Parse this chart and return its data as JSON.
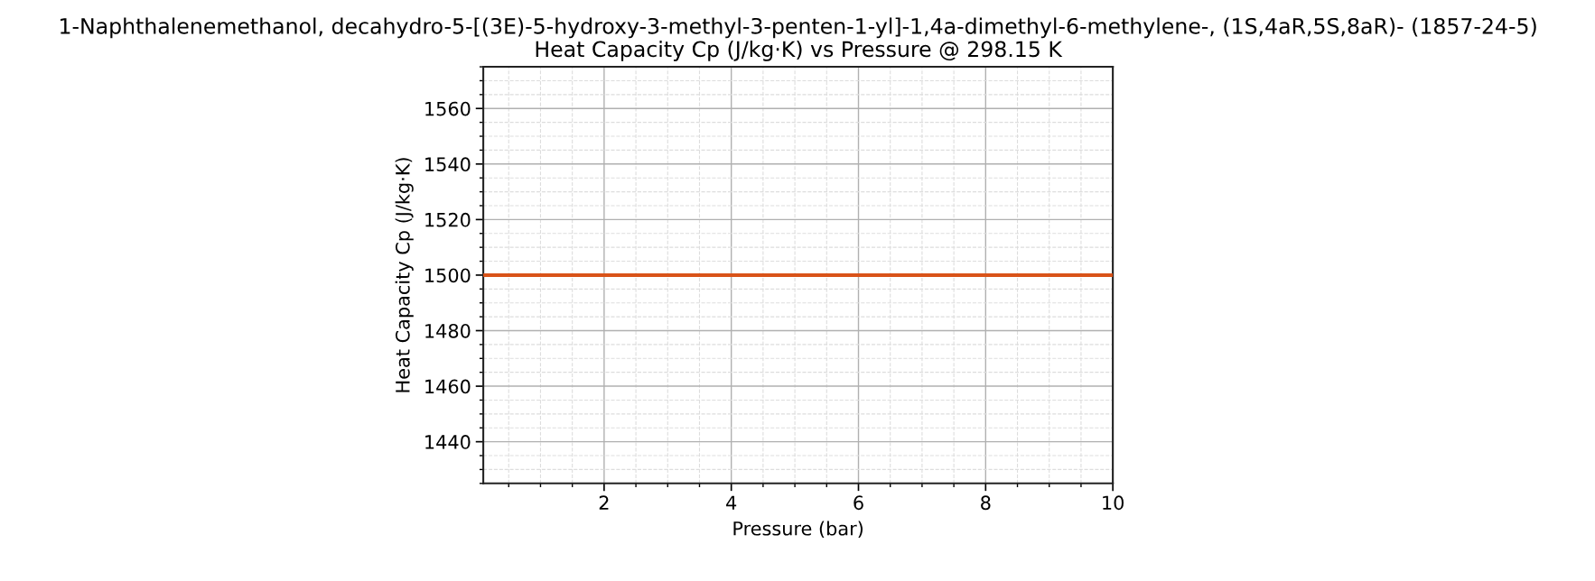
{
  "chart_data": {
    "type": "line",
    "title": "1-Naphthalenemethanol, decahydro-5-[(3E)-5-hydroxy-3-methyl-3-penten-1-yl]-1,4a-dimethyl-6-methylene-, (1S,4aR,5S,8aR)- (1857-24-5)",
    "subtitle": "Heat Capacity Cp (J/kg·K) vs Pressure @ 298.15 K",
    "xlabel": "Pressure (bar)",
    "ylabel": "Heat Capacity Cp (J/kg·K)",
    "x": [
      0.1,
      10
    ],
    "series": [
      {
        "color": "#d95319",
        "values": [
          1500,
          1500
        ]
      }
    ],
    "xlim": [
      0.1,
      10
    ],
    "ylim": [
      1425,
      1575
    ],
    "xticks": [
      2,
      4,
      6,
      8,
      10
    ],
    "yticks": [
      1440,
      1460,
      1480,
      1500,
      1520,
      1540,
      1560
    ],
    "grid": true,
    "line_style": "solid"
  }
}
